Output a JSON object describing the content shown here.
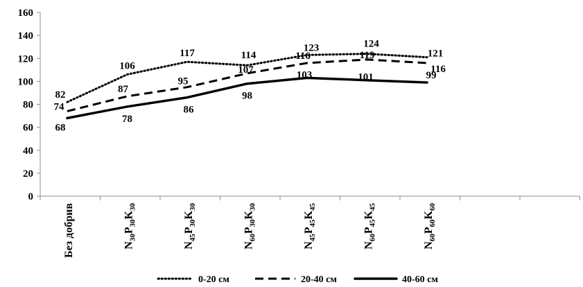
{
  "chart_data": {
    "type": "line",
    "title": "",
    "xlabel": "",
    "ylabel": "",
    "ylim": [
      0,
      160
    ],
    "yticks": [
      0,
      20,
      40,
      60,
      80,
      100,
      120,
      140,
      160
    ],
    "ytick_labels": [
      "0",
      "20",
      "40",
      "60",
      "80",
      "100",
      "120",
      "140",
      "160"
    ],
    "grid": false,
    "legend_position": "bottom",
    "categories": [
      {
        "base": "Без добрив",
        "parts": []
      },
      {
        "base": "",
        "parts": [
          [
            "N",
            "30"
          ],
          [
            "P",
            "30"
          ],
          [
            "K",
            "30"
          ]
        ]
      },
      {
        "base": "",
        "parts": [
          [
            "N",
            "45"
          ],
          [
            "P",
            "30"
          ],
          [
            "K",
            "30"
          ]
        ]
      },
      {
        "base": "",
        "parts": [
          [
            "N",
            "60"
          ],
          [
            "P",
            "30"
          ],
          [
            "K",
            "30"
          ]
        ]
      },
      {
        "base": "",
        "parts": [
          [
            "N",
            "45"
          ],
          [
            "P",
            "45"
          ],
          [
            "K",
            "45"
          ]
        ]
      },
      {
        "base": "",
        "parts": [
          [
            "N",
            "60"
          ],
          [
            "P",
            "45"
          ],
          [
            "K",
            "45"
          ]
        ]
      },
      {
        "base": "",
        "parts": [
          [
            "N",
            "60"
          ],
          [
            "P",
            "60"
          ],
          [
            "K",
            "60"
          ]
        ]
      }
    ],
    "series": [
      {
        "name": "0-20 см",
        "style": "dotted",
        "values": [
          82,
          106,
          117,
          114,
          123,
          124,
          121
        ]
      },
      {
        "name": "20-40 см",
        "style": "dashed",
        "values": [
          74,
          87,
          95,
          107,
          116,
          119,
          116
        ]
      },
      {
        "name": "40-60 см",
        "style": "solid",
        "values": [
          68,
          78,
          86,
          98,
          103,
          101,
          99
        ]
      }
    ]
  }
}
